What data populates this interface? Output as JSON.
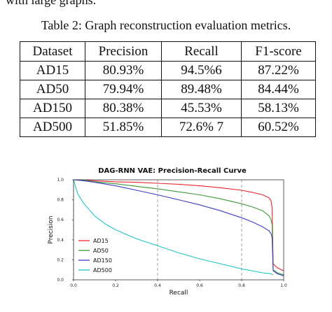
{
  "prev_text": "with large graphs.",
  "table": {
    "caption": "Table 2: Graph reconstruction evaluation metrics.",
    "headers": [
      "Dataset",
      "Precision",
      "Recall",
      "F1-score"
    ],
    "rows": [
      [
        "AD15",
        "80.93%",
        "94.5%6",
        "87.22%"
      ],
      [
        "AD50",
        "79.94%",
        "89.48%",
        "84.44%"
      ],
      [
        "AD150",
        "80.38%",
        "45.53%",
        "58.13%"
      ],
      [
        "AD500",
        "51.85%",
        "72.6% 7",
        "60.52%"
      ]
    ]
  },
  "chart_data": {
    "type": "line",
    "title": "DAG-RNN VAE: Precision-Recall Curve",
    "xlabel": "Recall",
    "ylabel": "Precision",
    "xlim": [
      0.0,
      1.0
    ],
    "ylim": [
      0.0,
      1.0
    ],
    "xticks": [
      "0.0",
      "0.2",
      "0.4",
      "0.6",
      "0.8",
      "1.0"
    ],
    "yticks": [
      "0.0",
      "0.2",
      "0.4",
      "0.6",
      "0.8",
      "1.0"
    ],
    "vertical_reference_lines": [
      0.0,
      0.4,
      0.8
    ],
    "legend_position": "lower-left",
    "series": [
      {
        "name": "AD15",
        "color": "#e8262a",
        "x": [
          0.0,
          0.05,
          0.1,
          0.2,
          0.3,
          0.4,
          0.5,
          0.6,
          0.7,
          0.8,
          0.85,
          0.9,
          0.93,
          0.94,
          0.945,
          0.95,
          0.97,
          1.0
        ],
        "y": [
          1.0,
          0.997,
          0.99,
          0.98,
          0.975,
          0.965,
          0.955,
          0.94,
          0.92,
          0.895,
          0.875,
          0.85,
          0.82,
          0.79,
          0.72,
          0.16,
          0.12,
          0.09
        ]
      },
      {
        "name": "AD50",
        "color": "#3a9a3a",
        "x": [
          0.0,
          0.05,
          0.1,
          0.2,
          0.3,
          0.4,
          0.5,
          0.6,
          0.7,
          0.8,
          0.85,
          0.9,
          0.93,
          0.94,
          0.945,
          0.95,
          0.97,
          1.0
        ],
        "y": [
          1.0,
          0.995,
          0.98,
          0.96,
          0.935,
          0.91,
          0.88,
          0.85,
          0.81,
          0.76,
          0.73,
          0.69,
          0.64,
          0.6,
          0.55,
          0.1,
          0.07,
          0.05
        ]
      },
      {
        "name": "AD150",
        "color": "#3c3cc8",
        "x": [
          0.0,
          0.05,
          0.1,
          0.2,
          0.3,
          0.4,
          0.5,
          0.6,
          0.7,
          0.8,
          0.85,
          0.9,
          0.93,
          0.94,
          0.945,
          0.95,
          0.97,
          1.0
        ],
        "y": [
          1.0,
          0.99,
          0.975,
          0.94,
          0.895,
          0.85,
          0.8,
          0.75,
          0.69,
          0.62,
          0.58,
          0.53,
          0.49,
          0.46,
          0.42,
          0.09,
          0.06,
          0.04
        ]
      },
      {
        "name": "AD500",
        "color": "#1fc6c6",
        "x": [
          0.0,
          0.02,
          0.05,
          0.1,
          0.15,
          0.2,
          0.3,
          0.4,
          0.5,
          0.6,
          0.7,
          0.8,
          0.9,
          0.94,
          0.95
        ],
        "y": [
          1.0,
          0.86,
          0.76,
          0.64,
          0.56,
          0.5,
          0.41,
          0.34,
          0.27,
          0.21,
          0.16,
          0.11,
          0.07,
          0.06,
          0.05
        ]
      }
    ]
  }
}
